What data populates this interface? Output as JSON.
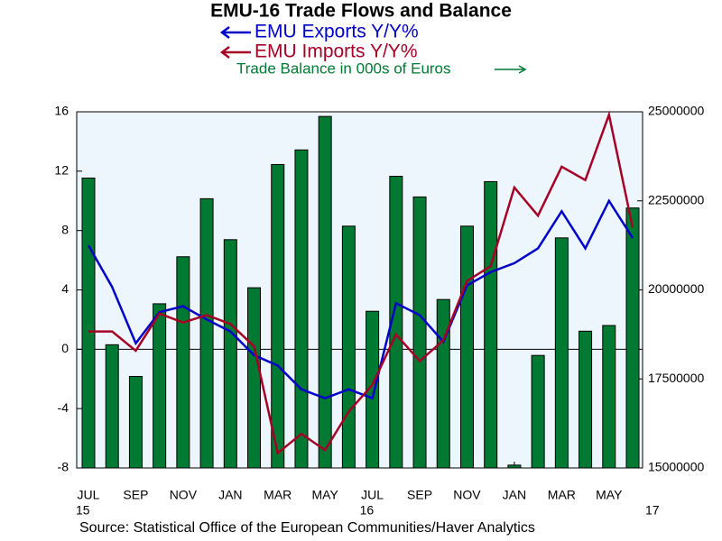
{
  "chart_data": {
    "type": "bar-line",
    "title": "EMU-16 Trade Flows and Balance",
    "source": "Source:  Statistical Office of the European Communities/Haver Analytics",
    "categories": [
      "JUL",
      null,
      "SEP",
      null,
      "NOV",
      null,
      "JAN",
      null,
      "MAR",
      null,
      "MAY",
      null,
      "JUL",
      null,
      "SEP",
      null,
      "NOV",
      null,
      "JAN",
      null,
      "MAR",
      null,
      "MAY",
      null
    ],
    "year_labels": [
      {
        "label": "15",
        "at": 0
      },
      {
        "label": "16",
        "at": 12
      },
      {
        "label": "17",
        "at": 24
      }
    ],
    "series": [
      {
        "name": "EMU Exports Y/Y%",
        "type": "line",
        "color": "#0000c8",
        "axis": "y",
        "values": [
          7.0,
          4.2,
          0.4,
          2.5,
          2.9,
          2.0,
          1.2,
          -0.4,
          -1.1,
          -2.7,
          -3.3,
          -2.7,
          -3.3,
          3.1,
          2.3,
          0.5,
          4.3,
          5.2,
          5.8,
          6.8,
          9.3,
          6.8,
          10.0,
          7.5
        ]
      },
      {
        "name": "EMU Imports Y/Y%",
        "type": "line",
        "color": "#a50026",
        "axis": "y",
        "values": [
          1.2,
          1.2,
          -0.1,
          2.4,
          1.8,
          2.3,
          1.7,
          0.2,
          -7.0,
          -5.7,
          -6.8,
          -4.2,
          -2.4,
          1.0,
          -0.8,
          0.6,
          4.6,
          5.6,
          10.9,
          9.0,
          12.3,
          11.4,
          15.8,
          8.2
        ]
      },
      {
        "name": "Trade Balance in 000s of Euros",
        "type": "bar",
        "color": "#007a33",
        "axis": "y2",
        "values": [
          23140000,
          18460000,
          17570000,
          19610000,
          20930000,
          22560000,
          21410000,
          20060000,
          23520000,
          23930000,
          24870000,
          21790000,
          19400000,
          23190000,
          22610000,
          19730000,
          21790000,
          23040000,
          15080000,
          18160000,
          21460000,
          18840000,
          19000000,
          22300000
        ]
      }
    ],
    "ylim": [
      -8,
      16
    ],
    "yticks": [
      -8,
      -4,
      0,
      4,
      8,
      12,
      16
    ],
    "y2lim": [
      15000000,
      25000000
    ],
    "y2ticks": [
      15000000,
      17500000,
      20000000,
      22500000,
      25000000
    ]
  }
}
